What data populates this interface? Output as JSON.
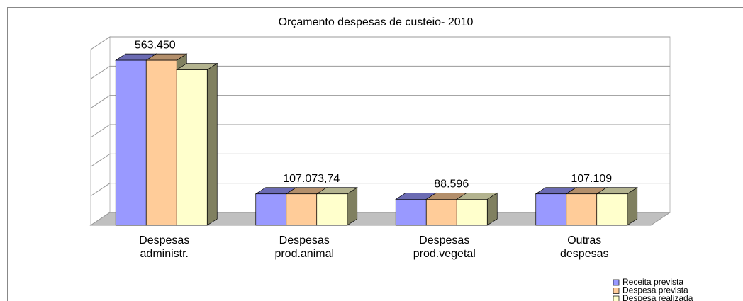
{
  "chart_data": {
    "type": "bar3d",
    "title": "Orçamento despesas de custeio- 2010",
    "categories": [
      [
        "Despesas",
        "administr."
      ],
      [
        "Despesas",
        "prod.animal"
      ],
      [
        "Despesas",
        "prod.vegetal"
      ],
      [
        "Outras",
        "despesas"
      ]
    ],
    "series": [
      {
        "name": "Receita prevista",
        "color": "#9999ff",
        "values": [
          563450,
          107073.74,
          88596,
          107109
        ],
        "value_labels": [
          "563.450",
          null,
          null,
          null
        ]
      },
      {
        "name": "Despesa prevista",
        "color": "#ffcc99",
        "values": [
          563450,
          107073.74,
          88596,
          107109
        ],
        "value_labels": [
          null,
          "107.073,74",
          "88.596",
          "107.109"
        ]
      },
      {
        "name": "Despesa realizada",
        "color": "#ffffcc",
        "values": [
          530903,
          107073.74,
          88596,
          107109
        ],
        "value_labels": [
          null,
          null,
          null,
          null
        ]
      }
    ],
    "ylim": [
      0,
      600000
    ],
    "yticks": [
      0,
      100000,
      200000,
      300000,
      400000,
      500000,
      600000
    ],
    "grid": true,
    "legend": "bottom-right"
  }
}
